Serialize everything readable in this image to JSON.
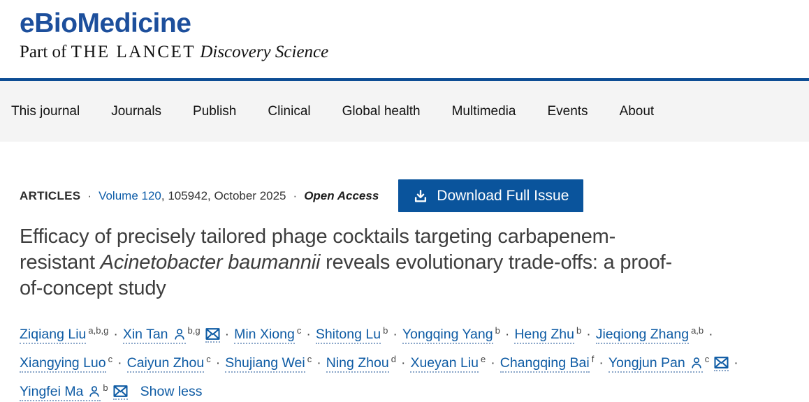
{
  "header": {
    "logo": "eBioMedicine",
    "tagline_prefix": "Part of ",
    "tagline_lancet": "THE LANCET",
    "tagline_italic": " Discovery Science"
  },
  "nav": {
    "items": [
      {
        "label": "This journal"
      },
      {
        "label": "Journals"
      },
      {
        "label": "Publish"
      },
      {
        "label": "Clinical"
      },
      {
        "label": "Global health"
      },
      {
        "label": "Multimedia"
      },
      {
        "label": "Events"
      },
      {
        "label": "About"
      }
    ]
  },
  "meta": {
    "section": "ARTICLES",
    "dot": "·",
    "volume_link": "Volume 120",
    "issue_info": ", 105942, October 2025",
    "open_access": "Open Access",
    "download_button_label": "Download Full Issue",
    "download_icon": "download-icon"
  },
  "article": {
    "title_part1": "Efficacy of precisely tailored phage cocktails targeting carbapenem-resistant ",
    "title_italic": "Acinetobacter baumannii",
    "title_part2": " reveals evolutionary trade-offs: a proof-of-concept study"
  },
  "authors": {
    "separator": "·",
    "show_less": "Show less",
    "person_icon": "person-icon",
    "envelope_icon": "envelope-icon",
    "list": [
      {
        "name": "Ziqiang Liu",
        "sup": "a,b,g",
        "person": false,
        "envelope": false
      },
      {
        "name": "Xin Tan",
        "sup": "b,g",
        "person": true,
        "envelope": true
      },
      {
        "name": "Min Xiong",
        "sup": "c",
        "person": false,
        "envelope": false
      },
      {
        "name": "Shitong Lu",
        "sup": "b",
        "person": false,
        "envelope": false
      },
      {
        "name": "Yongqing Yang",
        "sup": "b",
        "person": false,
        "envelope": false
      },
      {
        "name": "Heng Zhu",
        "sup": "b",
        "person": false,
        "envelope": false
      },
      {
        "name": "Jieqiong Zhang",
        "sup": "a,b",
        "person": false,
        "envelope": false
      },
      {
        "name": "Xiangying Luo",
        "sup": "c",
        "person": false,
        "envelope": false
      },
      {
        "name": "Caiyun Zhou",
        "sup": "c",
        "person": false,
        "envelope": false
      },
      {
        "name": "Shujiang Wei",
        "sup": "c",
        "person": false,
        "envelope": false
      },
      {
        "name": "Ning Zhou",
        "sup": "d",
        "person": false,
        "envelope": false
      },
      {
        "name": "Xueyan Liu",
        "sup": "e",
        "person": false,
        "envelope": false
      },
      {
        "name": "Changqing Bai",
        "sup": "f",
        "person": false,
        "envelope": false
      },
      {
        "name": "Yongjun Pan",
        "sup": "c",
        "person": true,
        "envelope": true
      },
      {
        "name": "Yingfei Ma",
        "sup": "b",
        "person": true,
        "envelope": true
      }
    ]
  },
  "colors": {
    "logo_blue": "#1d4f9c",
    "rule_blue": "#0d4d94",
    "nav_background": "#f4f4f4",
    "link_blue": "#0e5ba4",
    "button_blue": "#0a549c",
    "title_gray": "#3e3e3e"
  }
}
